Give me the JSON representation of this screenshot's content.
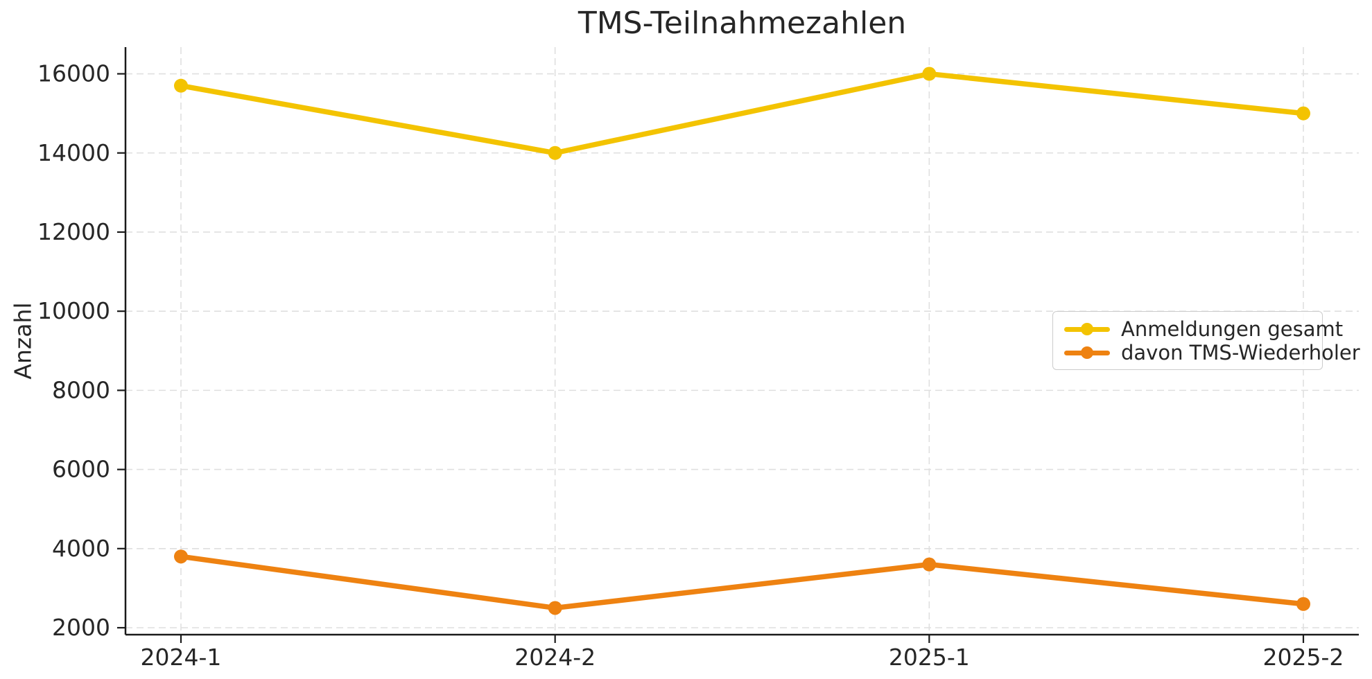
{
  "chart_data": {
    "type": "line",
    "title": "TMS-Teilnahmezahlen",
    "xlabel": "",
    "ylabel": "Anzahl",
    "categories": [
      "2024-1",
      "2024-2",
      "2025-1",
      "2025-2"
    ],
    "series": [
      {
        "name": "Anmeldungen gesamt",
        "color": "#F3C301",
        "values": [
          15700,
          14000,
          16000,
          15000
        ]
      },
      {
        "name": "davon TMS-Wiederholer",
        "color": "#EE8211",
        "values": [
          3800,
          2500,
          3600,
          2600
        ]
      }
    ],
    "yticks": [
      2000,
      4000,
      6000,
      8000,
      10000,
      12000,
      14000,
      16000
    ],
    "ylim": [
      1825,
      16675
    ],
    "grid": true,
    "grid_style": "dashed",
    "legend_position": "center right",
    "colors": {
      "text": "#262626",
      "spine": "#1a1a1a",
      "grid": "#dfdfdf",
      "legend_border": "#cccccc",
      "background": "#ffffff"
    },
    "line_width": 7.5,
    "marker": "circle",
    "marker_radius": 10
  }
}
